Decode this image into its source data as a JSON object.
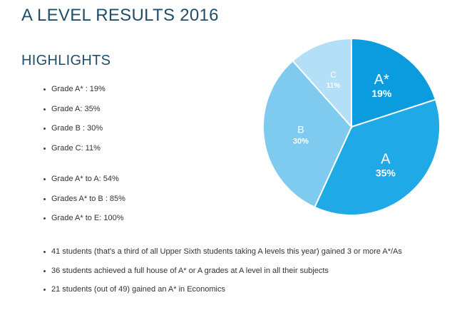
{
  "header": {
    "title": "A LEVEL RESULTS 2016",
    "subtitle": "HIGHLIGHTS"
  },
  "grade_list": [
    "Grade A* : 19%",
    "Grade A: 35%",
    "Grade B : 30%",
    "Grade C: 11%"
  ],
  "cumulative_list": [
    "Grade A* to A: 54%",
    "Grades A* to B : 85%",
    "Grade A* to E: 100%"
  ],
  "facts_list": [
    "41 students (that's a third of all Upper Sixth students taking A levels this year) gained 3 or more A*/As",
    "36 students achieved a full house of A* or A grades at A level in all their subjects",
    "21 students (out of 49) gained an A* in Economics"
  ],
  "chart_data": {
    "type": "pie",
    "slices": [
      {
        "label": "A*",
        "value": 19,
        "value_label": "19%",
        "color": "#0a9cde"
      },
      {
        "label": "A",
        "value": 35,
        "value_label": "35%",
        "color": "#1fa9e6"
      },
      {
        "label": "B",
        "value": 30,
        "value_label": "30%",
        "color": "#7fcbef"
      },
      {
        "label": "C",
        "value": 11,
        "value_label": "11%",
        "color": "#b3e0f6"
      }
    ],
    "start_angle_deg": 0,
    "direction": "clockwise"
  }
}
